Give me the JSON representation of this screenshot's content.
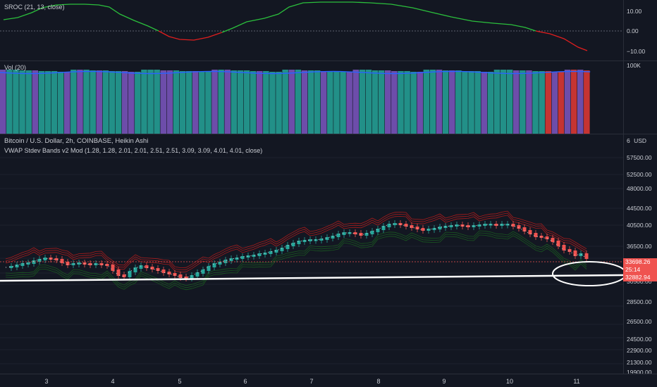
{
  "sroc": {
    "title": "SROC (21, 13, close)",
    "ticks": [
      "10.00",
      "0.00",
      "−10.00"
    ],
    "tick_values": [
      10,
      0,
      -10
    ],
    "colors": {
      "up": "#2bbf3c",
      "down": "#e01e1e"
    }
  },
  "volume": {
    "title": "Vol (20)",
    "ticks": [
      "100K"
    ],
    "colors": {
      "teal": "#26a69a",
      "purple": "#7e57c2",
      "red": "#e53935",
      "ma": "#2962ff"
    }
  },
  "price": {
    "title": "Bitcoin / U.S. Dollar, 2h, COINBASE, Heikin Ashi",
    "indicator": "VWAP Stdev Bands v2 Mod (1.28, 1.28, 2.01, 2.01, 2.51, 2.51, 3.09, 3.09, 4.01, 4.01, close)",
    "currency_label": "USD",
    "currency_prefix": "6",
    "ticks": [
      "57500.00",
      "52500.00",
      "48000.00",
      "44500.00",
      "40500.00",
      "36500.00",
      "30500.00",
      "28500.00",
      "26500.00",
      "24500.00",
      "22900.00",
      "21300.00",
      "19900.00"
    ],
    "tick_values": [
      57500,
      52500,
      48000,
      44500,
      40500,
      36500,
      30500,
      28500,
      26500,
      24500,
      22900,
      21300,
      19900
    ],
    "last_price": "33698.26",
    "countdown": "25:14",
    "line_price": "32882.94",
    "colors": {
      "bull": "#26a69a",
      "bear": "#ef5350",
      "upper_band": "#b71c1c",
      "lower_band": "#1b5e20",
      "annotation": "#ffffff"
    }
  },
  "time_axis": {
    "labels": [
      "3",
      "4",
      "5",
      "6",
      "7",
      "8",
      "9",
      "10",
      "11"
    ]
  }
}
